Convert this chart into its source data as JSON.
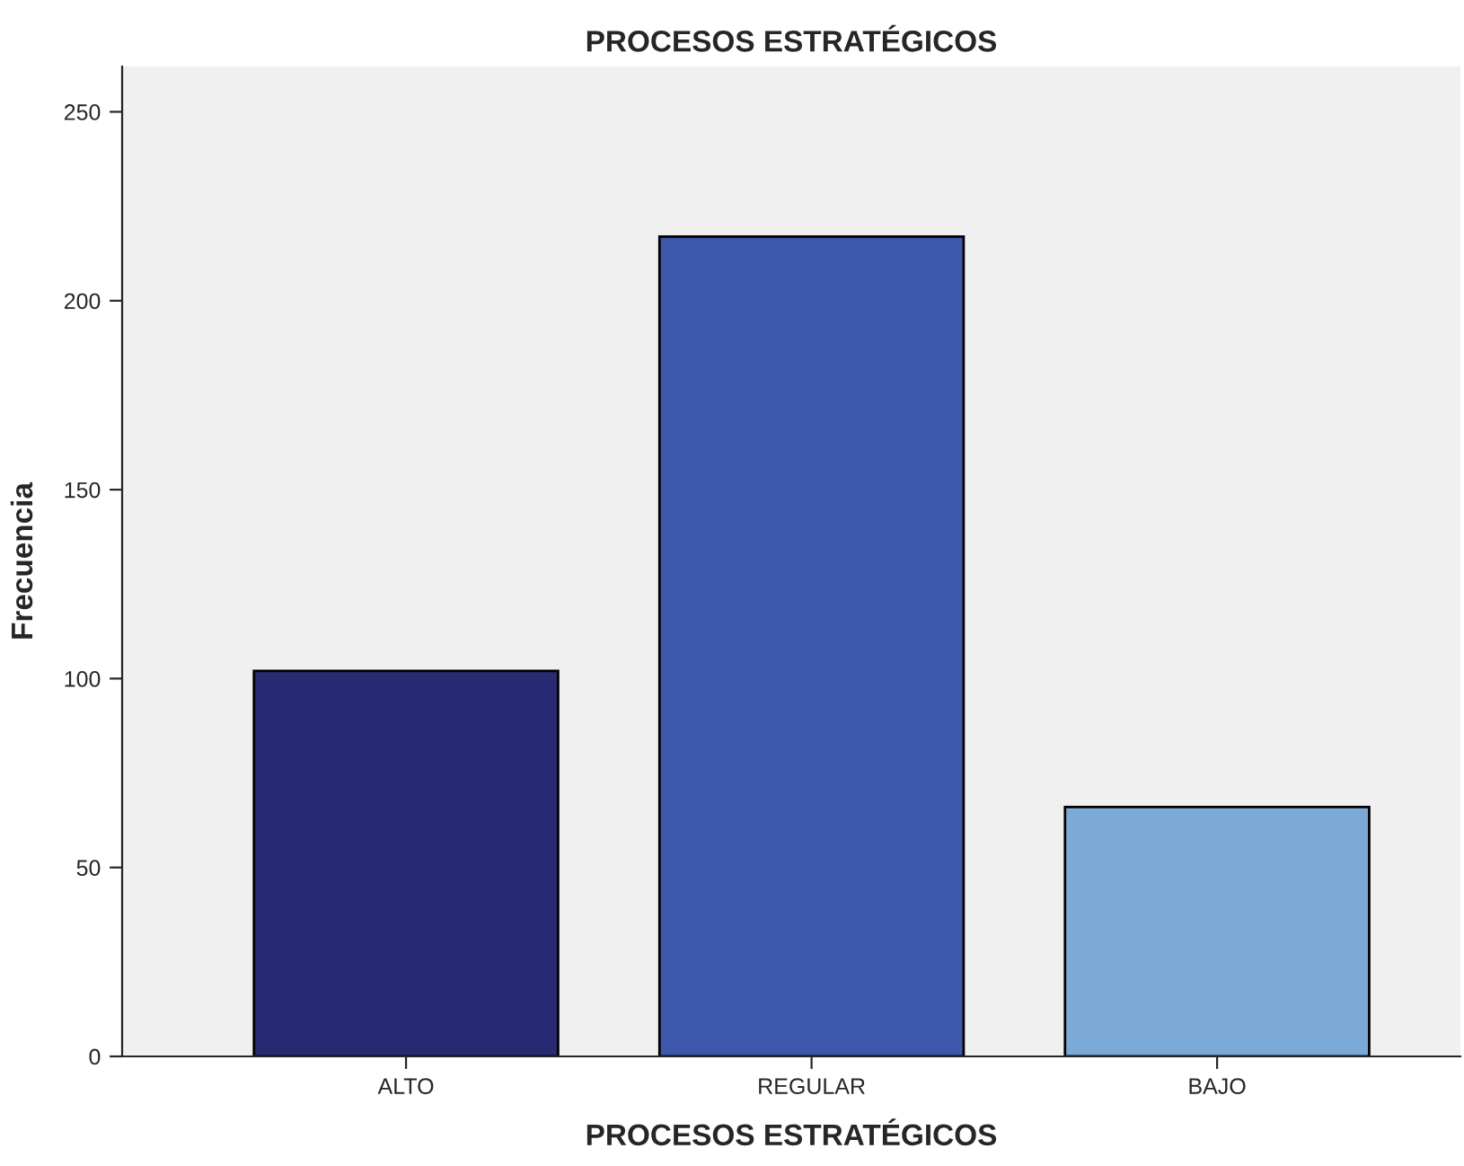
{
  "chart_data": {
    "type": "bar",
    "title": "PROCESOS ESTRATÉGICOS",
    "xlabel": "PROCESOS ESTRATÉGICOS",
    "ylabel": "Frecuencia",
    "categories": [
      "ALTO",
      "REGULAR",
      "BAJO"
    ],
    "values": [
      102,
      217,
      66
    ],
    "colors": [
      "#282a74",
      "#3e58ac",
      "#7caad6"
    ],
    "ylim": [
      0,
      262
    ],
    "yticks": [
      0,
      50,
      100,
      150,
      200,
      250
    ],
    "grid": false
  }
}
